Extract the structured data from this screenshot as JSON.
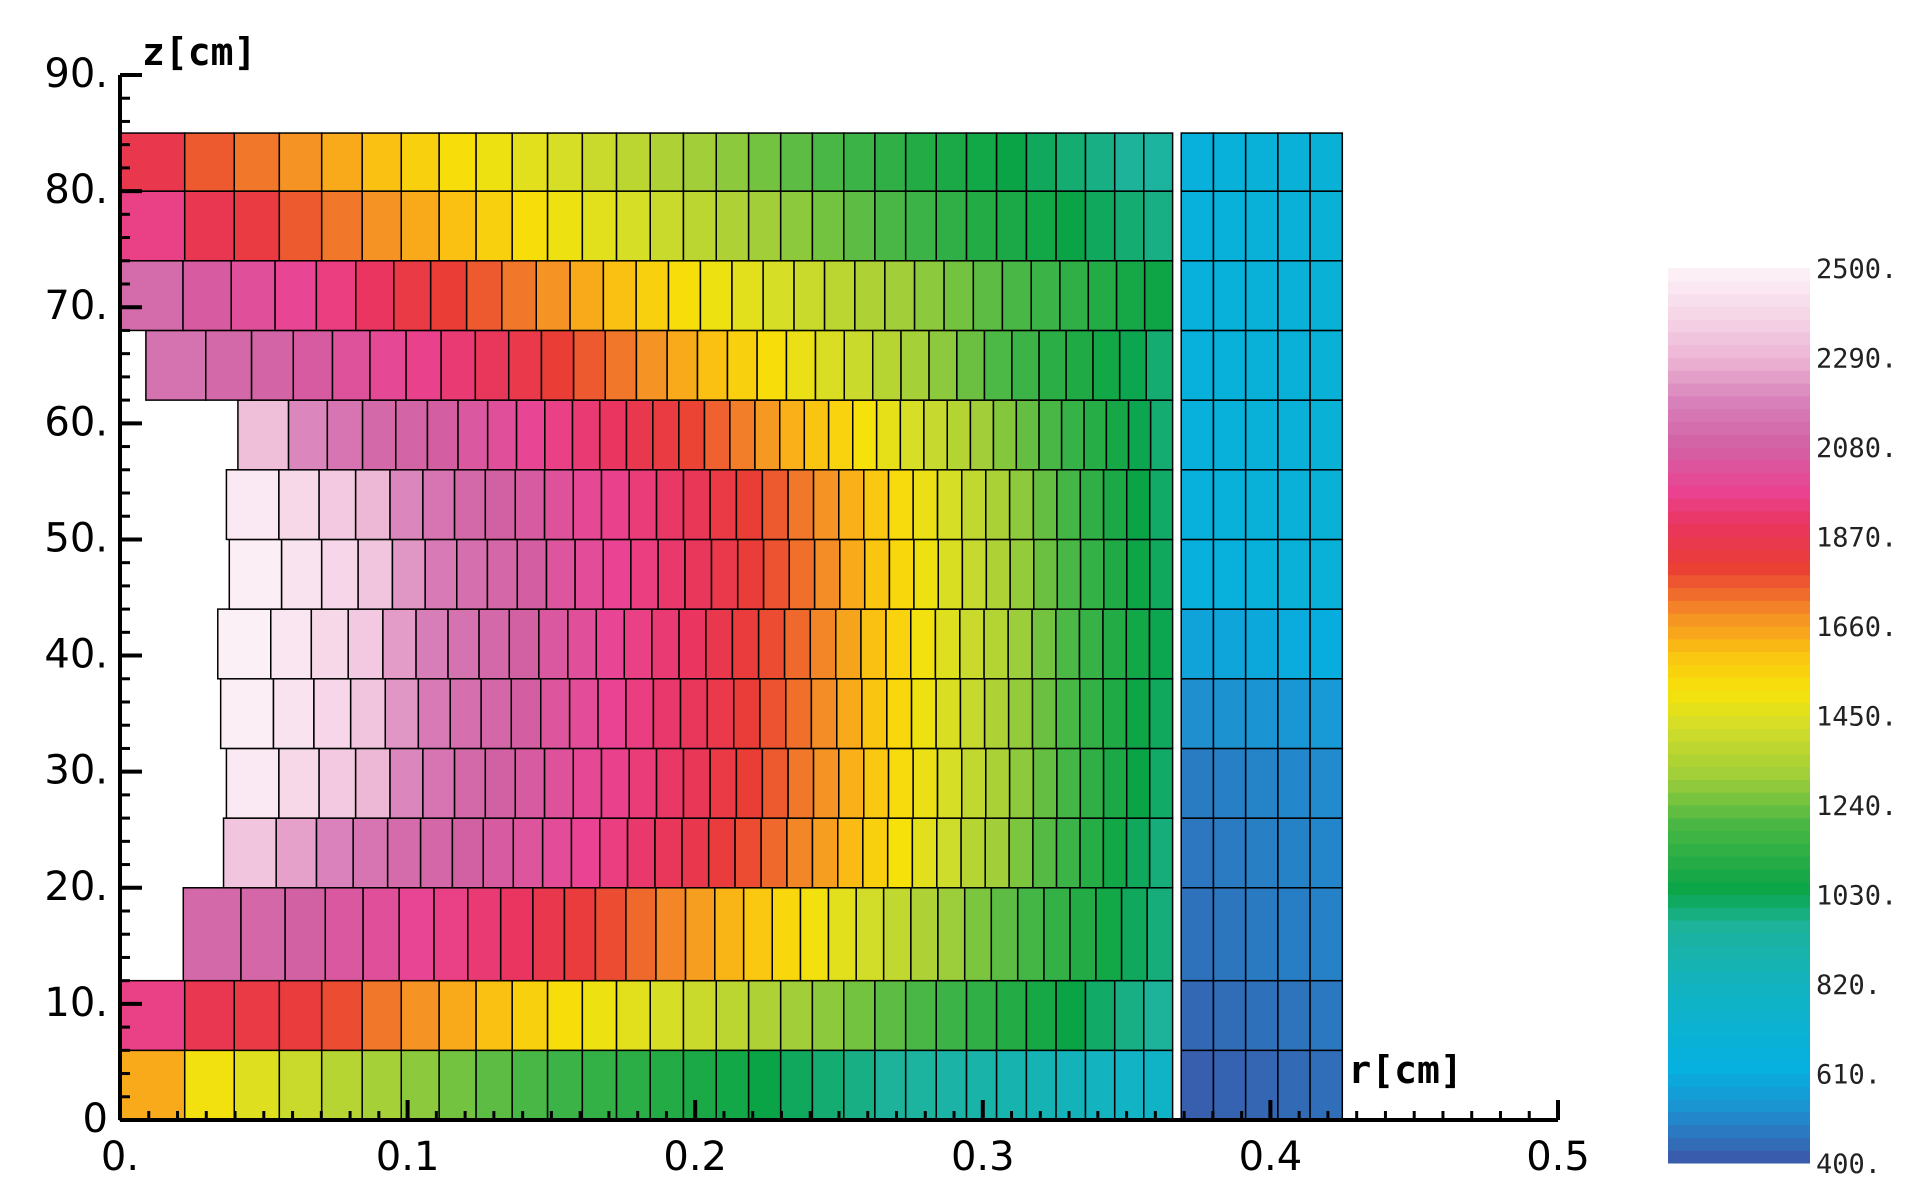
{
  "chart_data": {
    "type": "heatmap",
    "xlabel": "r[cm]",
    "ylabel": "z[cm]",
    "xlim": [
      0,
      0.5
    ],
    "ylim": [
      0,
      90
    ],
    "x_ticks": [
      "0.",
      "0.1",
      "0.2",
      "0.3",
      "0.4",
      "0.5"
    ],
    "y_ticks": [
      "0",
      "10.",
      "20.",
      "30.",
      "40.",
      "50.",
      "60.",
      "70.",
      "80.",
      "90."
    ],
    "colorbar": {
      "min": 400,
      "max": 2500,
      "tick_labels": [
        "400.",
        "610.",
        "820.",
        "1030.",
        "1240.",
        "1450.",
        "1660.",
        "1870.",
        "2080.",
        "2290.",
        "2500."
      ]
    },
    "layers": [
      {
        "z": [
          0,
          6
        ],
        "r_start": 0.0,
        "temps": [
          1640,
          1500,
          1450,
          1400,
          1360,
          1320,
          1280,
          1250,
          1220,
          1190,
          1160,
          1140,
          1120,
          1100,
          1080,
          1060,
          1040,
          1020,
          1000,
          980,
          960,
          940,
          920,
          900,
          880,
          860,
          840,
          820,
          800,
          790
        ],
        "clad": 420
      },
      {
        "z": [
          6,
          12
        ],
        "r_start": 0.0,
        "temps": [
          1960,
          1870,
          1840,
          1820,
          1780,
          1720,
          1680,
          1640,
          1600,
          1560,
          1520,
          1490,
          1460,
          1430,
          1400,
          1370,
          1340,
          1310,
          1280,
          1250,
          1220,
          1190,
          1160,
          1130,
          1100,
          1070,
          1040,
          1010,
          980,
          960
        ],
        "clad": 440
      },
      {
        "z": [
          12,
          20
        ],
        "r_start": 0.022,
        "temps": [
          2110,
          2100,
          2080,
          2050,
          2020,
          1990,
          1960,
          1930,
          1900,
          1860,
          1820,
          1780,
          1740,
          1700,
          1660,
          1620,
          1580,
          1540,
          1500,
          1460,
          1420,
          1380,
          1340,
          1300,
          1260,
          1220,
          1180,
          1140,
          1100,
          1060,
          1020,
          990
        ],
        "clad": 460
      },
      {
        "z": [
          20,
          26
        ],
        "r_start": 0.036,
        "temps": [
          2340,
          2250,
          2190,
          2150,
          2120,
          2100,
          2080,
          2060,
          2040,
          2010,
          1980,
          1950,
          1920,
          1890,
          1860,
          1820,
          1780,
          1740,
          1700,
          1660,
          1610,
          1560,
          1510,
          1460,
          1410,
          1360,
          1310,
          1260,
          1210,
          1160,
          1110,
          1060,
          1020,
          990
        ],
        "clad": 470
      },
      {
        "z": [
          26,
          32
        ],
        "r_start": 0.037,
        "temps": [
          2460,
          2400,
          2350,
          2300,
          2200,
          2150,
          2110,
          2080,
          2060,
          2030,
          2000,
          1970,
          1940,
          1910,
          1880,
          1840,
          1800,
          1760,
          1720,
          1680,
          1630,
          1580,
          1530,
          1480,
          1430,
          1380,
          1330,
          1280,
          1230,
          1180,
          1130,
          1080,
          1040,
          1010
        ],
        "clad": 480
      },
      {
        "z": [
          32,
          38
        ],
        "r_start": 0.035,
        "temps": [
          2480,
          2440,
          2390,
          2340,
          2230,
          2170,
          2130,
          2100,
          2070,
          2040,
          2010,
          1980,
          1950,
          1920,
          1890,
          1850,
          1810,
          1770,
          1730,
          1690,
          1640,
          1590,
          1540,
          1490,
          1440,
          1390,
          1340,
          1290,
          1240,
          1190,
          1140,
          1090,
          1050,
          1020
        ],
        "clad": 520
      },
      {
        "z": [
          38,
          44
        ],
        "r_start": 0.034,
        "temps": [
          2490,
          2450,
          2400,
          2350,
          2240,
          2180,
          2140,
          2110,
          2080,
          2050,
          2020,
          1990,
          1960,
          1930,
          1900,
          1860,
          1820,
          1780,
          1740,
          1700,
          1650,
          1600,
          1550,
          1500,
          1450,
          1400,
          1350,
          1300,
          1250,
          1200,
          1150,
          1100,
          1060,
          1030
        ],
        "clad": 580
      },
      {
        "z": [
          44,
          50
        ],
        "r_start": 0.038,
        "temps": [
          2480,
          2440,
          2390,
          2340,
          2230,
          2170,
          2130,
          2100,
          2070,
          2040,
          2010,
          1980,
          1950,
          1920,
          1890,
          1850,
          1810,
          1770,
          1730,
          1690,
          1640,
          1590,
          1540,
          1490,
          1440,
          1390,
          1340,
          1290,
          1240,
          1190,
          1140,
          1090,
          1050,
          1020
        ],
        "clad": 640
      },
      {
        "z": [
          50,
          56
        ],
        "r_start": 0.037,
        "temps": [
          2460,
          2400,
          2350,
          2300,
          2200,
          2150,
          2110,
          2080,
          2060,
          2030,
          2000,
          1970,
          1940,
          1910,
          1880,
          1840,
          1800,
          1760,
          1720,
          1680,
          1630,
          1580,
          1530,
          1480,
          1430,
          1380,
          1330,
          1280,
          1230,
          1180,
          1130,
          1080,
          1040,
          1010
        ],
        "clad": 650
      },
      {
        "z": [
          56,
          62
        ],
        "r_start": 0.041,
        "temps": [
          2320,
          2200,
          2150,
          2110,
          2090,
          2070,
          2050,
          2020,
          1990,
          1960,
          1930,
          1900,
          1860,
          1830,
          1790,
          1750,
          1710,
          1670,
          1630,
          1590,
          1550,
          1510,
          1470,
          1430,
          1390,
          1350,
          1310,
          1270,
          1230,
          1190,
          1150,
          1110,
          1070,
          1030,
          1000
        ],
        "clad": 650
      },
      {
        "z": [
          62,
          68
        ],
        "r_start": 0.009,
        "temps": [
          2140,
          2110,
          2090,
          2060,
          2030,
          2000,
          1970,
          1930,
          1890,
          1850,
          1800,
          1760,
          1720,
          1680,
          1640,
          1600,
          1560,
          1520,
          1480,
          1440,
          1400,
          1360,
          1320,
          1280,
          1240,
          1200,
          1160,
          1120,
          1090,
          1060,
          1030,
          1000
        ],
        "clad": 650
      },
      {
        "z": [
          68,
          74
        ],
        "r_start": 0.0,
        "temps": [
          2120,
          2060,
          2020,
          1990,
          1950,
          1900,
          1840,
          1800,
          1760,
          1720,
          1680,
          1640,
          1600,
          1560,
          1520,
          1490,
          1460,
          1430,
          1400,
          1370,
          1340,
          1310,
          1280,
          1250,
          1220,
          1190,
          1160,
          1130,
          1100,
          1070,
          1050
        ],
        "clad": 650
      },
      {
        "z": [
          74,
          80
        ],
        "r_start": 0.0,
        "temps": [
          1960,
          1870,
          1830,
          1760,
          1720,
          1680,
          1640,
          1600,
          1560,
          1520,
          1490,
          1460,
          1430,
          1400,
          1370,
          1340,
          1310,
          1280,
          1250,
          1220,
          1190,
          1160,
          1130,
          1100,
          1080,
          1060,
          1040,
          1020,
          1000,
          980
        ],
        "clad": 650
      },
      {
        "z": [
          80,
          85
        ],
        "r_start": 0.0,
        "temps": [
          1860,
          1760,
          1720,
          1680,
          1640,
          1600,
          1560,
          1520,
          1490,
          1460,
          1430,
          1400,
          1370,
          1340,
          1310,
          1280,
          1250,
          1220,
          1190,
          1160,
          1130,
          1100,
          1080,
          1060,
          1040,
          1020,
          1000,
          980,
          960,
          940
        ],
        "clad": 650
      }
    ],
    "fuel_outer_r": 0.366,
    "clad_r": [
      0.369,
      0.425
    ]
  }
}
